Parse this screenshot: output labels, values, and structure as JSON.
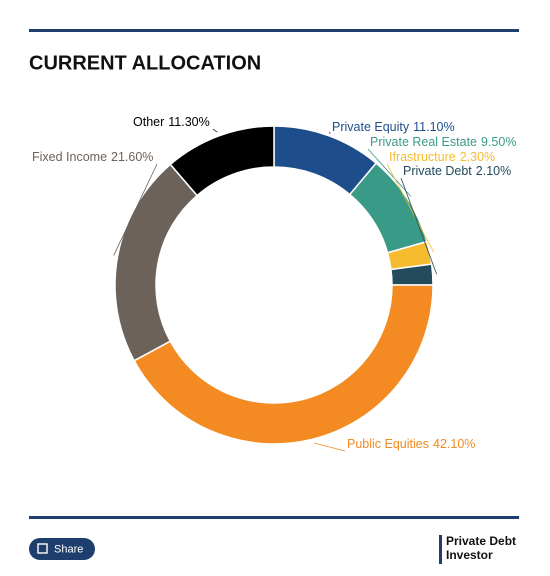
{
  "chart_data": {
    "type": "donut",
    "title": "CURRENT ALLOCATION",
    "categories": [
      "Private Equity",
      "Private Real Estate",
      "Ifrastructure",
      "Private Debt",
      "Public Equities",
      "Fixed Income",
      "Other"
    ],
    "values": [
      11.1,
      9.5,
      2.3,
      2.1,
      42.1,
      21.6,
      11.3
    ],
    "value_labels": [
      "11.10%",
      "9.50%",
      "2.30%",
      "2.10%",
      "42.10%",
      "21.60%",
      "11.30%"
    ],
    "colors": [
      "#1e4d8c",
      "#3a9a88",
      "#f6bb2f",
      "#234b5b",
      "#f38a22",
      "#6c6259",
      "#000000"
    ]
  },
  "footer": {
    "share_button": "Share",
    "logo": [
      "Private Debt",
      "Investor"
    ]
  }
}
